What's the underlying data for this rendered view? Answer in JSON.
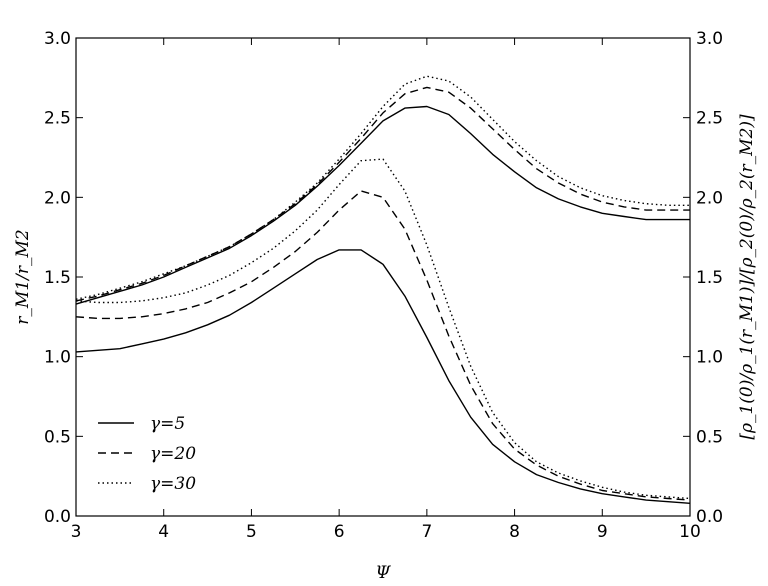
{
  "chart_data": {
    "type": "line",
    "xlabel": "Ψ",
    "ylabel_left": "r_M1/r_M2",
    "ylabel_right": "[ρ_1(0)/ρ_1(r_M1)]/[ρ_2(0)/ρ_2(r_M2)]",
    "xlim": [
      3,
      10
    ],
    "ylim": [
      0,
      3
    ],
    "ylim_right": [
      0,
      3
    ],
    "xticks": [
      "3",
      "4",
      "5",
      "6",
      "7",
      "8",
      "9",
      "10"
    ],
    "yticks": [
      "0.0",
      "0.5",
      "1.0",
      "1.5",
      "2.0",
      "2.5",
      "3.0"
    ],
    "yticks_right": [
      "0.0",
      "0.5",
      "1.0",
      "1.5",
      "2.0",
      "2.5",
      "3.0"
    ],
    "grid": false,
    "legend_position": "lower-left",
    "series": [
      {
        "name": "γ=5",
        "style": "solid",
        "group": "upper",
        "x": [
          3,
          3.25,
          3.5,
          3.75,
          4,
          4.25,
          4.5,
          4.75,
          5,
          5.25,
          5.5,
          5.75,
          6,
          6.25,
          6.5,
          6.75,
          7,
          7.25,
          7.5,
          7.75,
          8,
          8.25,
          8.5,
          8.75,
          9,
          9.25,
          9.5,
          9.75,
          10
        ],
        "y": [
          1.33,
          1.37,
          1.41,
          1.45,
          1.5,
          1.56,
          1.62,
          1.68,
          1.76,
          1.85,
          1.95,
          2.07,
          2.2,
          2.34,
          2.48,
          2.56,
          2.57,
          2.52,
          2.4,
          2.27,
          2.16,
          2.06,
          1.99,
          1.94,
          1.9,
          1.88,
          1.86,
          1.86,
          1.86
        ]
      },
      {
        "name": "γ=20",
        "style": "dashed",
        "group": "upper",
        "x": [
          3,
          3.25,
          3.5,
          3.75,
          4,
          4.25,
          4.5,
          4.75,
          5,
          5.25,
          5.5,
          5.75,
          6,
          6.25,
          6.5,
          6.75,
          7,
          7.25,
          7.5,
          7.75,
          8,
          8.25,
          8.5,
          8.75,
          9,
          9.25,
          9.5,
          9.75,
          10
        ],
        "y": [
          1.35,
          1.38,
          1.42,
          1.46,
          1.51,
          1.57,
          1.63,
          1.69,
          1.77,
          1.86,
          1.96,
          2.08,
          2.22,
          2.37,
          2.53,
          2.65,
          2.69,
          2.66,
          2.56,
          2.43,
          2.3,
          2.18,
          2.09,
          2.02,
          1.97,
          1.94,
          1.92,
          1.92,
          1.92
        ]
      },
      {
        "name": "γ=30",
        "style": "dotted",
        "group": "upper",
        "x": [
          3,
          3.25,
          3.5,
          3.75,
          4,
          4.25,
          4.5,
          4.75,
          5,
          5.25,
          5.5,
          5.75,
          6,
          6.25,
          6.5,
          6.75,
          7,
          7.25,
          7.5,
          7.75,
          8,
          8.25,
          8.5,
          8.75,
          9,
          9.25,
          9.5,
          9.75,
          10
        ],
        "y": [
          1.36,
          1.39,
          1.43,
          1.47,
          1.52,
          1.57,
          1.63,
          1.69,
          1.77,
          1.86,
          1.97,
          2.09,
          2.24,
          2.4,
          2.57,
          2.71,
          2.76,
          2.73,
          2.63,
          2.49,
          2.35,
          2.23,
          2.13,
          2.06,
          2.01,
          1.98,
          1.96,
          1.95,
          1.95
        ]
      },
      {
        "name": "γ=5",
        "style": "solid",
        "group": "lower",
        "x": [
          3,
          3.25,
          3.5,
          3.75,
          4,
          4.25,
          4.5,
          4.75,
          5,
          5.25,
          5.5,
          5.75,
          6,
          6.25,
          6.5,
          6.75,
          7,
          7.25,
          7.5,
          7.75,
          8,
          8.25,
          8.5,
          8.75,
          9,
          9.25,
          9.5,
          9.75,
          10
        ],
        "y": [
          1.03,
          1.04,
          1.05,
          1.08,
          1.11,
          1.15,
          1.2,
          1.26,
          1.34,
          1.43,
          1.52,
          1.61,
          1.67,
          1.67,
          1.58,
          1.38,
          1.12,
          0.85,
          0.62,
          0.45,
          0.34,
          0.26,
          0.21,
          0.17,
          0.14,
          0.12,
          0.1,
          0.09,
          0.08
        ]
      },
      {
        "name": "γ=20",
        "style": "dashed",
        "group": "lower",
        "x": [
          3,
          3.25,
          3.5,
          3.75,
          4,
          4.25,
          4.5,
          4.75,
          5,
          5.25,
          5.5,
          5.75,
          6,
          6.25,
          6.5,
          6.75,
          7,
          7.25,
          7.5,
          7.75,
          8,
          8.25,
          8.5,
          8.75,
          9,
          9.25,
          9.5,
          9.75,
          10
        ],
        "y": [
          1.25,
          1.24,
          1.24,
          1.25,
          1.27,
          1.3,
          1.34,
          1.4,
          1.47,
          1.56,
          1.66,
          1.78,
          1.92,
          2.04,
          2.0,
          1.8,
          1.48,
          1.13,
          0.82,
          0.58,
          0.42,
          0.32,
          0.25,
          0.2,
          0.16,
          0.14,
          0.12,
          0.11,
          0.1
        ]
      },
      {
        "name": "γ=30",
        "style": "dotted",
        "group": "lower",
        "x": [
          3,
          3.25,
          3.5,
          3.75,
          4,
          4.25,
          4.5,
          4.75,
          5,
          5.25,
          5.5,
          5.75,
          6,
          6.25,
          6.5,
          6.75,
          7,
          7.25,
          7.5,
          7.75,
          8,
          8.25,
          8.5,
          8.75,
          9,
          9.25,
          9.5,
          9.75,
          10
        ],
        "y": [
          1.35,
          1.34,
          1.34,
          1.35,
          1.37,
          1.4,
          1.45,
          1.51,
          1.59,
          1.68,
          1.79,
          1.92,
          2.08,
          2.23,
          2.24,
          2.04,
          1.7,
          1.31,
          0.94,
          0.65,
          0.46,
          0.34,
          0.27,
          0.22,
          0.18,
          0.15,
          0.13,
          0.12,
          0.11
        ]
      }
    ],
    "legend": [
      {
        "label": "γ=5",
        "style": "solid"
      },
      {
        "label": "γ=20",
        "style": "dashed"
      },
      {
        "label": "γ=30",
        "style": "dotted"
      }
    ]
  }
}
